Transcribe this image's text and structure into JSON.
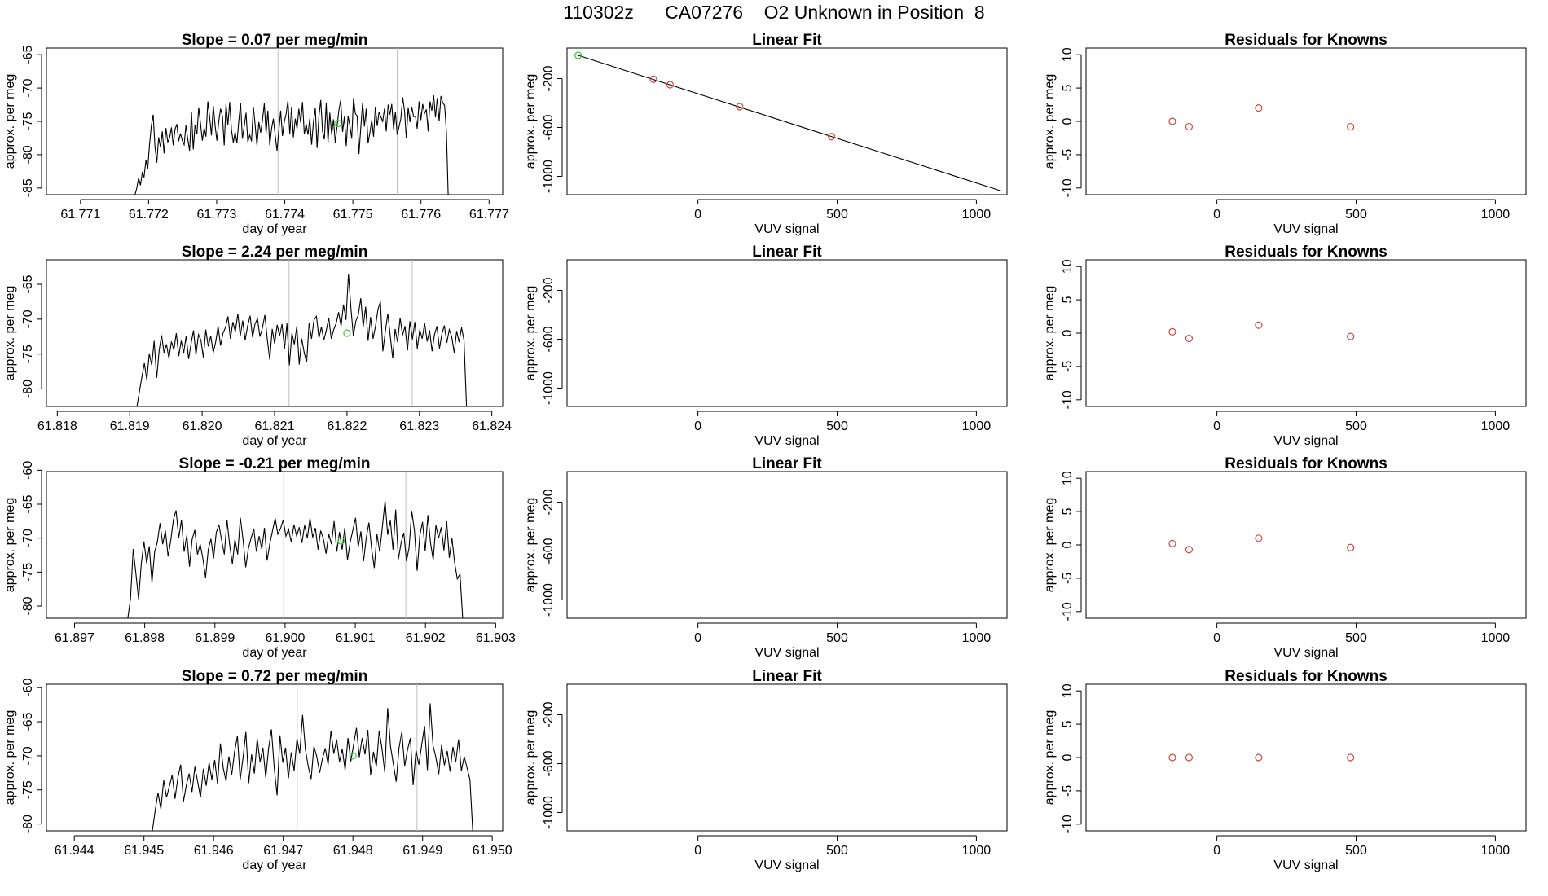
{
  "figure_title": "110302z      CA07276    O2 Unknown in Position  8",
  "colors": {
    "line": "#000000",
    "gridline": "#bebebe",
    "known_point": "#d0473e",
    "unknown_point": "#33cc33",
    "axis": "#000000"
  },
  "chart_data": [
    {
      "type": "line",
      "row": 1,
      "panel": "timeseries",
      "title": "Slope =  0.07  per meg/min",
      "xlabel": "day of year",
      "ylabel": "approx. per meg",
      "xlim": [
        61.7705,
        61.7772
      ],
      "ylim": [
        -86.0,
        -64.0
      ],
      "xticks": [
        61.771,
        61.772,
        61.773,
        61.774,
        61.775,
        61.776,
        61.777
      ],
      "xtick_labels": [
        "61.771",
        "61.772",
        "61.773",
        "61.774",
        "61.775",
        "61.776",
        "61.777"
      ],
      "yticks": [
        -65,
        -70,
        -75,
        -80,
        -85
      ],
      "ytick_labels": [
        "-65",
        "-70",
        "-75",
        "-80",
        "-85"
      ],
      "vlines": [
        61.7739,
        61.77565
      ],
      "x_start": 61.7718,
      "x_end": 61.7764,
      "y": [
        -86.0,
        -85.0,
        -83.5,
        -84.6,
        -82.7,
        -83.4,
        -80.8,
        -82.1,
        -78.5,
        -75.6,
        -74.0,
        -78.8,
        -81.2,
        -77.4,
        -78.9,
        -76.5,
        -79.8,
        -76.0,
        -78.1,
        -77.5,
        -75.9,
        -78.6,
        -76.2,
        -75.4,
        -78.0,
        -76.8,
        -77.9,
        -78.5,
        -75.6,
        -77.7,
        -79.4,
        -73.6,
        -79.2,
        -75.5,
        -76.9,
        -72.9,
        -75.3,
        -77.9,
        -76.0,
        -77.3,
        -72.0,
        -74.3,
        -77.1,
        -72.7,
        -75.6,
        -77.9,
        -75.0,
        -73.1,
        -74.2,
        -78.6,
        -72.4,
        -75.6,
        -72.1,
        -76.3,
        -78.2,
        -76.6,
        -78.3,
        -74.9,
        -72.3,
        -77.6,
        -75.7,
        -73.7,
        -78.1,
        -77.0,
        -78.0,
        -72.8,
        -75.6,
        -78.6,
        -75.1,
        -76.7,
        -74.9,
        -72.3,
        -76.8,
        -73.4,
        -78.6,
        -76.1,
        -74.6,
        -77.1,
        -79.4,
        -76.5,
        -73.4,
        -77.2,
        -75.0,
        -73.9,
        -71.9,
        -76.9,
        -72.8,
        -77.4,
        -74.6,
        -76.1,
        -73.1,
        -75.2,
        -72.1,
        -76.9,
        -75.4,
        -77.0,
        -74.6,
        -78.5,
        -75.1,
        -73.0,
        -79.0,
        -74.3,
        -71.8,
        -76.5,
        -77.7,
        -72.3,
        -78.2,
        -73.7,
        -77.0,
        -74.7,
        -78.2,
        -75.6,
        -73.3,
        -71.8,
        -76.6,
        -74.3,
        -78.7,
        -74.2,
        -75.6,
        -77.6,
        -71.5,
        -73.8,
        -74.2,
        -79.9,
        -76.0,
        -72.2,
        -75.8,
        -73.1,
        -78.3,
        -76.7,
        -74.8,
        -77.3,
        -72.8,
        -75.7,
        -73.6,
        -74.3,
        -75.0,
        -73.1,
        -76.5,
        -72.5,
        -74.0,
        -72.4,
        -76.2,
        -73.6,
        -77.0,
        -75.8,
        -74.6,
        -71.4,
        -73.4,
        -77.5,
        -72.9,
        -75.1,
        -72.8,
        -74.3,
        -74.2,
        -76.1,
        -72.0,
        -74.8,
        -72.4,
        -73.8,
        -73.2,
        -76.5,
        -72.0,
        -73.4,
        -71.1,
        -74.4,
        -71.5,
        -75.0,
        -71.2,
        -72.2,
        -72.6,
        -76.5,
        -86.0
      ],
      "unknown_point": {
        "x": 61.77478,
        "y": -75.3
      }
    },
    {
      "type": "line",
      "row": 2,
      "panel": "timeseries",
      "title": "Slope =  2.24  per meg/min",
      "xlabel": "day of year",
      "ylabel": "approx. per meg",
      "xlim": [
        61.81785,
        61.82415
      ],
      "ylim": [
        -82.5,
        -61.5
      ],
      "xticks": [
        61.818,
        61.819,
        61.82,
        61.821,
        61.822,
        61.823,
        61.824
      ],
      "xtick_labels": [
        "61.818",
        "61.819",
        "61.820",
        "61.821",
        "61.822",
        "61.823",
        "61.824"
      ],
      "yticks": [
        -65,
        -70,
        -75,
        -80
      ],
      "ytick_labels": [
        "-65",
        "-70",
        "-75",
        "-80"
      ],
      "vlines": [
        61.8212,
        61.8229
      ],
      "x_start": 61.8191,
      "x_end": 61.82365,
      "y": [
        -82.5,
        -80.4,
        -78.3,
        -76.3,
        -78.7,
        -74.9,
        -76.6,
        -73.1,
        -78.4,
        -74.5,
        -72.3,
        -74.8,
        -73.6,
        -75.6,
        -73.2,
        -74.4,
        -72.0,
        -75.3,
        -73.1,
        -74.8,
        -72.4,
        -75.7,
        -73.5,
        -71.6,
        -75.1,
        -72.2,
        -73.0,
        -75.5,
        -71.5,
        -73.9,
        -72.4,
        -74.8,
        -73.3,
        -71.0,
        -73.8,
        -72.0,
        -71.2,
        -69.6,
        -72.8,
        -70.4,
        -71.8,
        -69.2,
        -72.4,
        -70.2,
        -73.0,
        -71.0,
        -69.5,
        -72.6,
        -70.7,
        -69.9,
        -72.5,
        -71.3,
        -69.4,
        -72.9,
        -75.8,
        -71.4,
        -73.5,
        -70.8,
        -72.4,
        -70.7,
        -74.3,
        -70.6,
        -76.6,
        -72.0,
        -73.6,
        -71.0,
        -76.5,
        -72.8,
        -74.8,
        -76.2,
        -70.5,
        -72.8,
        -70.1,
        -69.6,
        -72.7,
        -71.1,
        -73.0,
        -71.6,
        -69.8,
        -72.8,
        -71.5,
        -70.6,
        -69.0,
        -71.0,
        -67.9,
        -70.1,
        -63.5,
        -68.4,
        -72.4,
        -70.3,
        -69.4,
        -67.0,
        -71.1,
        -68.2,
        -73.1,
        -69.7,
        -72.8,
        -71.0,
        -68.6,
        -67.5,
        -74.6,
        -71.7,
        -69.2,
        -72.4,
        -75.6,
        -71.4,
        -73.3,
        -69.8,
        -72.3,
        -71.0,
        -74.5,
        -70.3,
        -72.9,
        -70.4,
        -74.2,
        -71.5,
        -72.8,
        -70.6,
        -73.2,
        -71.6,
        -74.6,
        -72.2,
        -71.0,
        -74.2,
        -72.1,
        -70.9,
        -73.4,
        -71.5,
        -72.5,
        -74.8,
        -71.7,
        -73.3,
        -71.2,
        -73.0,
        -82.5
      ],
      "unknown_point": {
        "x": 61.822,
        "y": -72.0
      }
    },
    {
      "type": "line",
      "row": 3,
      "panel": "timeseries",
      "title": "Slope =  -0.21  per meg/min",
      "xlabel": "day of year",
      "ylabel": "approx. per meg",
      "xlim": [
        61.8966,
        61.9031
      ],
      "ylim": [
        -81.8,
        -60.2
      ],
      "xticks": [
        61.897,
        61.898,
        61.899,
        61.9,
        61.901,
        61.902,
        61.903
      ],
      "xtick_labels": [
        "61.897",
        "61.898",
        "61.899",
        "61.900",
        "61.901",
        "61.902",
        "61.903"
      ],
      "yticks": [
        -60,
        -65,
        -70,
        -75,
        -80
      ],
      "ytick_labels": [
        "-60",
        "-65",
        "-70",
        "-75",
        "-80"
      ],
      "vlines": [
        61.89998,
        61.90172
      ],
      "x_start": 61.89776,
      "x_end": 61.90253,
      "y": [
        -81.8,
        -78.9,
        -71.6,
        -75.2,
        -79.0,
        -73.8,
        -70.5,
        -73.7,
        -71.2,
        -76.6,
        -72.0,
        -70.6,
        -67.8,
        -70.9,
        -68.9,
        -72.7,
        -70.4,
        -67.3,
        -65.9,
        -70.0,
        -67.3,
        -72.0,
        -69.6,
        -74.2,
        -70.2,
        -68.8,
        -72.4,
        -70.9,
        -73.0,
        -75.8,
        -71.7,
        -70.1,
        -73.0,
        -69.2,
        -68.0,
        -70.3,
        -72.4,
        -67.3,
        -71.0,
        -73.8,
        -70.2,
        -72.4,
        -67.0,
        -70.2,
        -74.3,
        -71.5,
        -70.0,
        -68.6,
        -72.0,
        -69.7,
        -71.6,
        -68.5,
        -73.3,
        -70.8,
        -68.9,
        -67.1,
        -69.4,
        -68.6,
        -67.3,
        -69.7,
        -68.7,
        -70.6,
        -68.0,
        -69.7,
        -68.4,
        -70.7,
        -68.1,
        -70.0,
        -67.1,
        -69.9,
        -68.5,
        -71.7,
        -68.9,
        -70.1,
        -72.3,
        -69.4,
        -70.9,
        -67.5,
        -72.0,
        -69.1,
        -71.7,
        -68.5,
        -73.2,
        -70.6,
        -68.8,
        -67.0,
        -71.3,
        -69.0,
        -73.4,
        -70.0,
        -67.7,
        -71.5,
        -74.4,
        -69.4,
        -72.0,
        -68.4,
        -64.5,
        -69.5,
        -67.4,
        -71.7,
        -65.8,
        -73.1,
        -70.7,
        -69.2,
        -73.4,
        -71.4,
        -66.0,
        -68.9,
        -74.8,
        -69.6,
        -67.6,
        -71.9,
        -66.6,
        -70.7,
        -73.2,
        -68.1,
        -70.0,
        -68.4,
        -71.8,
        -67.5,
        -72.9,
        -70.0,
        -73.6,
        -76.0,
        -75.3,
        -81.8
      ],
      "unknown_point": {
        "x": 61.9008,
        "y": -70.4
      }
    },
    {
      "type": "line",
      "row": 4,
      "panel": "timeseries",
      "title": "Slope =  0.72  per meg/min",
      "xlabel": "day of year",
      "ylabel": "approx. per meg",
      "xlim": [
        61.9436,
        61.95015
      ],
      "ylim": [
        -81.0,
        -59.5
      ],
      "xticks": [
        61.944,
        61.945,
        61.946,
        61.947,
        61.948,
        61.949,
        61.95
      ],
      "xtick_labels": [
        "61.944",
        "61.945",
        "61.946",
        "61.947",
        "61.948",
        "61.949",
        "61.950"
      ],
      "yticks": [
        -60,
        -65,
        -70,
        -75,
        -80
      ],
      "ytick_labels": [
        "-60",
        "-65",
        "-70",
        "-75",
        "-80"
      ],
      "vlines": [
        61.9472,
        61.94892
      ],
      "x_start": 61.94512,
      "x_end": 61.94972,
      "y": [
        -81.0,
        -78.1,
        -75.4,
        -77.8,
        -73.6,
        -76.1,
        -74.5,
        -72.8,
        -76.3,
        -73.2,
        -71.3,
        -76.7,
        -74.3,
        -72.6,
        -75.3,
        -71.6,
        -73.8,
        -76.1,
        -71.9,
        -74.4,
        -71.0,
        -73.5,
        -70.6,
        -74.1,
        -68.2,
        -71.8,
        -73.7,
        -70.1,
        -72.8,
        -69.4,
        -67.1,
        -73.5,
        -70.3,
        -66.5,
        -74.0,
        -69.8,
        -72.6,
        -67.5,
        -70.9,
        -68.8,
        -73.2,
        -69.0,
        -66.1,
        -71.8,
        -75.8,
        -67.0,
        -71.0,
        -68.8,
        -73.3,
        -69.5,
        -72.2,
        -67.5,
        -69.7,
        -64.0,
        -69.1,
        -71.6,
        -73.4,
        -68.6,
        -70.1,
        -72.5,
        -70.4,
        -68.9,
        -71.3,
        -66.3,
        -69.7,
        -67.6,
        -70.9,
        -69.0,
        -72.1,
        -67.4,
        -70.8,
        -68.3,
        -65.9,
        -70.2,
        -67.4,
        -69.8,
        -66.2,
        -72.8,
        -69.4,
        -71.6,
        -66.3,
        -69.0,
        -72.4,
        -63.0,
        -68.6,
        -71.2,
        -73.8,
        -68.9,
        -66.5,
        -71.5,
        -69.1,
        -67.4,
        -74.3,
        -69.2,
        -71.3,
        -68.4,
        -65.6,
        -72.1,
        -62.3,
        -68.5,
        -70.2,
        -72.7,
        -68.4,
        -71.4,
        -69.3,
        -72.3,
        -68.7,
        -70.9,
        -67.6,
        -72.2,
        -70.1,
        -71.8,
        -73.5,
        -81.0
      ],
      "unknown_point": {
        "x": 61.948,
        "y": -70.0
      }
    },
    {
      "type": "scatter",
      "panel": "linear_fit",
      "rows": [
        1,
        2,
        3,
        4
      ],
      "title": "Linear Fit",
      "xlabel": "VUV signal",
      "ylabel": "approx. per meg",
      "xlim": [
        -470,
        1110
      ],
      "ylim": [
        -1150,
        50
      ],
      "xticks": [
        0,
        500,
        1000
      ],
      "xtick_labels": [
        "0",
        "500",
        "1000"
      ],
      "yticks": [
        -200,
        -600,
        -1000
      ],
      "ytick_labels": [
        "-200",
        "-600",
        "-1000"
      ],
      "fit_line": {
        "x": [
          -430,
          1090
        ],
        "y": [
          -10,
          -1120
        ]
      },
      "known_points": [
        {
          "x": -160,
          "y": -205
        },
        {
          "x": -100,
          "y": -250
        },
        {
          "x": 150,
          "y": -430
        },
        {
          "x": 480,
          "y": -675
        }
      ],
      "unknown_point": {
        "x": -430,
        "y": -10
      }
    },
    {
      "type": "scatter",
      "panel": "residuals",
      "row": 1,
      "title": "Residuals for Knowns",
      "xlabel": "VUV signal",
      "ylabel": "approx. per meg",
      "xlim": [
        -470,
        1110
      ],
      "ylim": [
        -11,
        11
      ],
      "xticks": [
        0,
        500,
        1000
      ],
      "xtick_labels": [
        "0",
        "500",
        "1000"
      ],
      "yticks": [
        10,
        5,
        0,
        -5,
        -10
      ],
      "ytick_labels": [
        "10",
        "5",
        "0",
        "-5",
        "-10"
      ],
      "points": [
        {
          "x": -160,
          "y": 0.0
        },
        {
          "x": -100,
          "y": -0.8
        },
        {
          "x": 150,
          "y": 2.0
        },
        {
          "x": 480,
          "y": -0.8
        }
      ]
    },
    {
      "type": "scatter",
      "panel": "residuals",
      "row": 2,
      "title": "Residuals for Knowns",
      "xlabel": "VUV signal",
      "ylabel": "approx. per meg",
      "xlim": [
        -470,
        1110
      ],
      "ylim": [
        -11,
        11
      ],
      "xticks": [
        0,
        500,
        1000
      ],
      "xtick_labels": [
        "0",
        "500",
        "1000"
      ],
      "yticks": [
        10,
        5,
        0,
        -5,
        -10
      ],
      "ytick_labels": [
        "10",
        "5",
        "0",
        "-5",
        "-10"
      ],
      "points": [
        {
          "x": -160,
          "y": 0.2
        },
        {
          "x": -100,
          "y": -0.8
        },
        {
          "x": 150,
          "y": 1.2
        },
        {
          "x": 480,
          "y": -0.5
        }
      ]
    },
    {
      "type": "scatter",
      "panel": "residuals",
      "row": 3,
      "title": "Residuals for Knowns",
      "xlabel": "VUV signal",
      "ylabel": "approx. per meg",
      "xlim": [
        -470,
        1110
      ],
      "ylim": [
        -11,
        11
      ],
      "xticks": [
        0,
        500,
        1000
      ],
      "xtick_labels": [
        "0",
        "500",
        "1000"
      ],
      "yticks": [
        10,
        5,
        0,
        -5,
        -10
      ],
      "ytick_labels": [
        "10",
        "5",
        "0",
        "-5",
        "-10"
      ],
      "points": [
        {
          "x": -160,
          "y": 0.2
        },
        {
          "x": -100,
          "y": -0.7
        },
        {
          "x": 150,
          "y": 1.0
        },
        {
          "x": 480,
          "y": -0.4
        }
      ]
    },
    {
      "type": "scatter",
      "panel": "residuals",
      "row": 4,
      "title": "Residuals for Knowns",
      "xlabel": "VUV signal",
      "ylabel": "approx. per meg",
      "xlim": [
        -470,
        1110
      ],
      "ylim": [
        -11,
        11
      ],
      "xticks": [
        0,
        500,
        1000
      ],
      "xtick_labels": [
        "0",
        "500",
        "1000"
      ],
      "yticks": [
        10,
        5,
        0,
        -5,
        -10
      ],
      "ytick_labels": [
        "10",
        "5",
        "0",
        "-5",
        "-10"
      ],
      "points": [
        {
          "x": -160,
          "y": 0.0
        },
        {
          "x": -100,
          "y": 0.0
        },
        {
          "x": 150,
          "y": 0.0
        },
        {
          "x": 480,
          "y": 0.0
        }
      ]
    }
  ]
}
